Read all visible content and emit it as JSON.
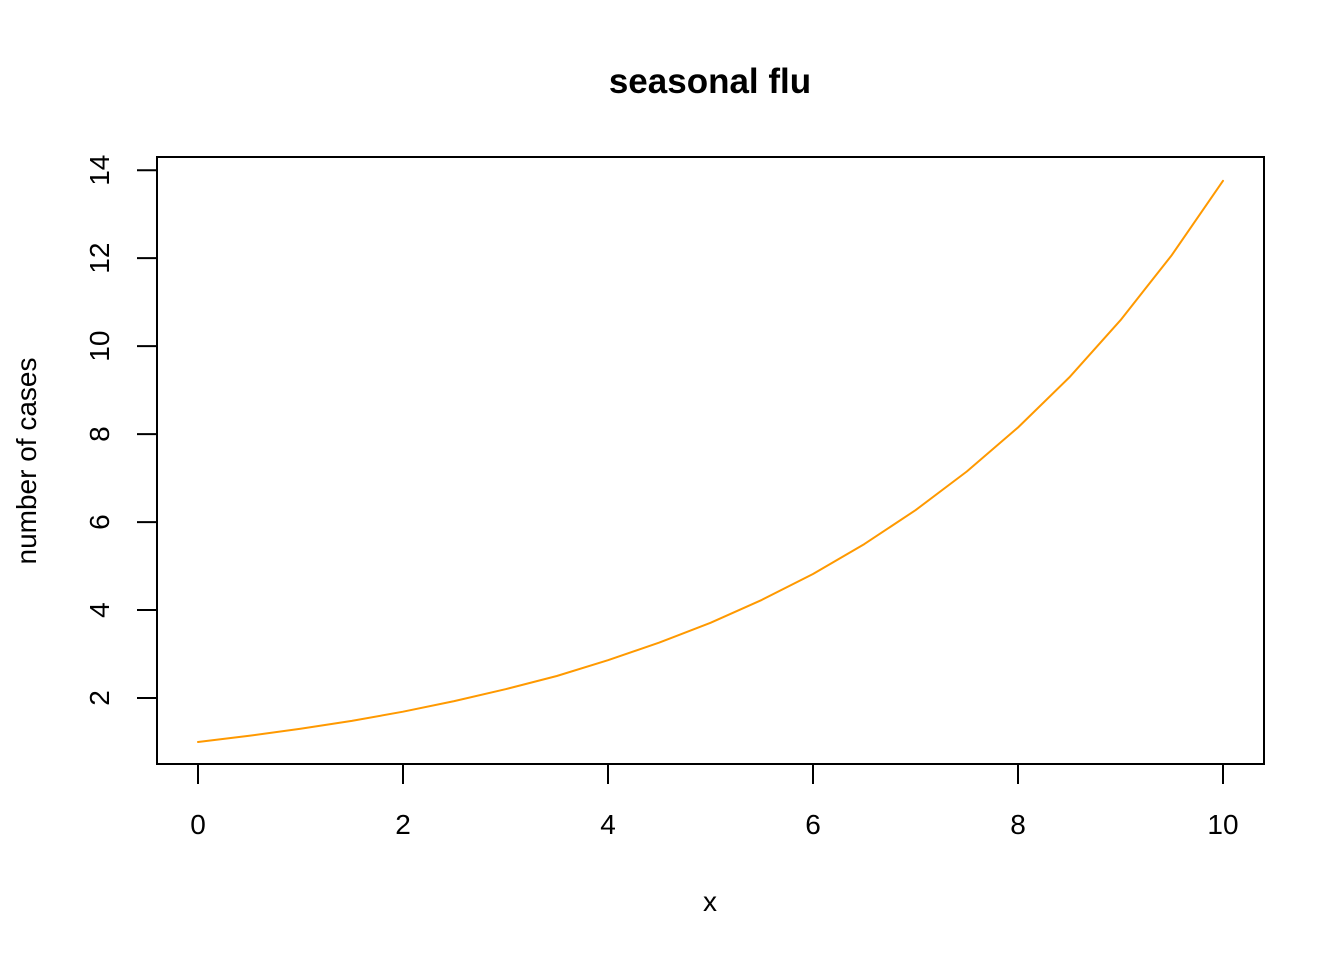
{
  "chart_data": {
    "type": "line",
    "title": "seasonal flu",
    "xlabel": "x",
    "ylabel": "number of cases",
    "xlim": [
      -0.4,
      10.4
    ],
    "ylim": [
      0.5,
      14.3
    ],
    "x_ticks": [
      0,
      2,
      4,
      6,
      8,
      10
    ],
    "y_ticks": [
      2,
      4,
      6,
      8,
      10,
      12,
      14
    ],
    "grid": false,
    "series": [
      {
        "color": "#FF9900",
        "x": [
          0,
          0.5,
          1,
          1.5,
          2,
          2.5,
          3,
          3.5,
          4,
          4.5,
          5,
          5.5,
          6,
          6.5,
          7,
          7.5,
          8,
          8.5,
          9,
          9.5,
          10
        ],
        "y": [
          1.0,
          1.14,
          1.3,
          1.48,
          1.69,
          1.93,
          2.2,
          2.5,
          2.86,
          3.26,
          3.71,
          4.23,
          4.82,
          5.5,
          6.27,
          7.15,
          8.15,
          9.29,
          10.59,
          12.07,
          13.76
        ]
      }
    ]
  }
}
